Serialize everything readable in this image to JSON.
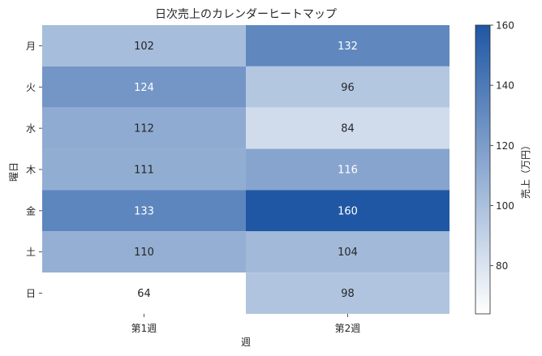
{
  "chart_data": {
    "type": "heatmap",
    "title": "日次売上のカレンダーヒートマップ",
    "xlabel": "週",
    "ylabel": "曜日",
    "x_categories": [
      "第1週",
      "第2週"
    ],
    "y_categories": [
      "月",
      "火",
      "水",
      "木",
      "金",
      "土",
      "日"
    ],
    "values": [
      [
        102,
        132
      ],
      [
        124,
        96
      ],
      [
        112,
        84
      ],
      [
        111,
        116
      ],
      [
        133,
        160
      ],
      [
        110,
        104
      ],
      [
        64,
        98
      ]
    ],
    "colorbar": {
      "label": "売上（万円）",
      "range": [
        64,
        160
      ],
      "ticks": [
        80,
        100,
        120,
        140,
        160
      ],
      "colors": [
        "#ffffff",
        "#1f57a4"
      ]
    },
    "grid": false
  }
}
